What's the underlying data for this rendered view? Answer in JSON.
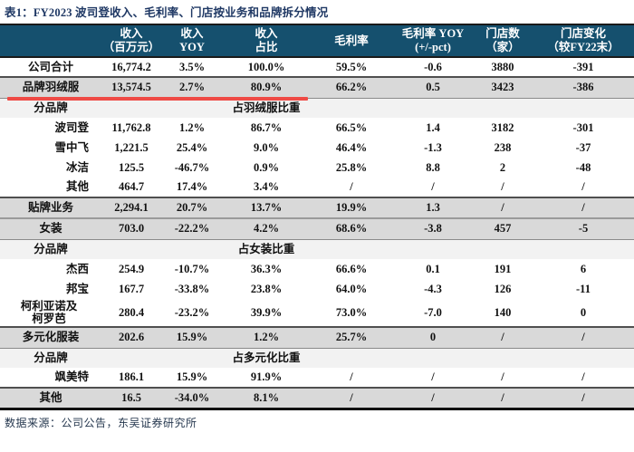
{
  "page": {
    "title": "表1：FY2023 波司登收入、毛利率、门店按业务和品牌拆分情况",
    "footer": "数据来源：公司公告，东吴证券研究所"
  },
  "colors": {
    "header_bg": "#15506e",
    "header_text": "#ffffff",
    "title_text": "#1f3864",
    "section_row_bg": "#d9d9d9",
    "subheader_row_bg": "#f2f2f2",
    "highlight_underline": "#ef4a45"
  },
  "table": {
    "header": [
      "",
      "收入\n（百万元）",
      "收入\nYOY",
      "收入\n占比",
      "毛利率",
      "毛利率 YOY\n(+/-pct)",
      "门店数\n（家）",
      "门店变化\n（较FY22末）"
    ],
    "rows": [
      {
        "type": "total",
        "label": "公司合计",
        "values": [
          "16,774.2",
          "3.5%",
          "100.0%",
          "59.5%",
          "-0.6",
          "3880",
          "-391"
        ]
      },
      {
        "type": "section",
        "label": "品牌羽绒服",
        "underline": true,
        "values": [
          "13,574.5",
          "2.7%",
          "80.9%",
          "66.2%",
          "0.5",
          "3423",
          "-386"
        ]
      },
      {
        "type": "subheader",
        "label": "分品牌",
        "note": "占羽绒服比重"
      },
      {
        "type": "brand",
        "label": "波司登",
        "values": [
          "11,762.8",
          "1.2%",
          "86.7%",
          "66.5%",
          "1.4",
          "3182",
          "-301"
        ]
      },
      {
        "type": "brand",
        "label": "雪中飞",
        "values": [
          "1,221.5",
          "25.4%",
          "9.0%",
          "46.4%",
          "-1.3",
          "238",
          "-37"
        ]
      },
      {
        "type": "brand",
        "label": "冰洁",
        "values": [
          "125.5",
          "-46.7%",
          "0.9%",
          "25.8%",
          "8.8",
          "2",
          "-48"
        ]
      },
      {
        "type": "brand",
        "label": "其他",
        "values": [
          "464.7",
          "17.4%",
          "3.4%",
          "/",
          "/",
          "/",
          "/"
        ]
      },
      {
        "type": "section",
        "label": "贴牌业务",
        "values": [
          "2,294.1",
          "20.7%",
          "13.7%",
          "19.9%",
          "1.3",
          "/",
          "/"
        ]
      },
      {
        "type": "section",
        "label": "女装",
        "values": [
          "703.0",
          "-22.2%",
          "4.2%",
          "68.6%",
          "-3.8",
          "457",
          "-5"
        ]
      },
      {
        "type": "subheader",
        "label": "分品牌",
        "note": "占女装比重"
      },
      {
        "type": "brand",
        "label": "杰西",
        "values": [
          "254.9",
          "-10.7%",
          "36.3%",
          "66.6%",
          "0.1",
          "191",
          "6"
        ]
      },
      {
        "type": "brand",
        "label": "邦宝",
        "values": [
          "167.7",
          "-33.8%",
          "23.8%",
          "64.0%",
          "-4.3",
          "126",
          "-11"
        ]
      },
      {
        "type": "brand",
        "label": "柯利亚诺及\n柯罗芭",
        "values": [
          "280.4",
          "-23.2%",
          "39.9%",
          "73.0%",
          "-7.0",
          "140",
          "0"
        ]
      },
      {
        "type": "section",
        "label": "多元化服装",
        "values": [
          "202.6",
          "15.9%",
          "1.2%",
          "25.7%",
          "0",
          "/",
          "/"
        ]
      },
      {
        "type": "subheader",
        "label": "分品牌",
        "note": "占多元化比重"
      },
      {
        "type": "brand",
        "label": "飒美特",
        "values": [
          "186.1",
          "15.9%",
          "91.9%",
          "/",
          "/",
          "/",
          "/"
        ]
      },
      {
        "type": "section",
        "label": "其他",
        "values": [
          "16.5",
          "-34.0%",
          "8.1%",
          "/",
          "/",
          "/",
          "/"
        ]
      }
    ]
  }
}
